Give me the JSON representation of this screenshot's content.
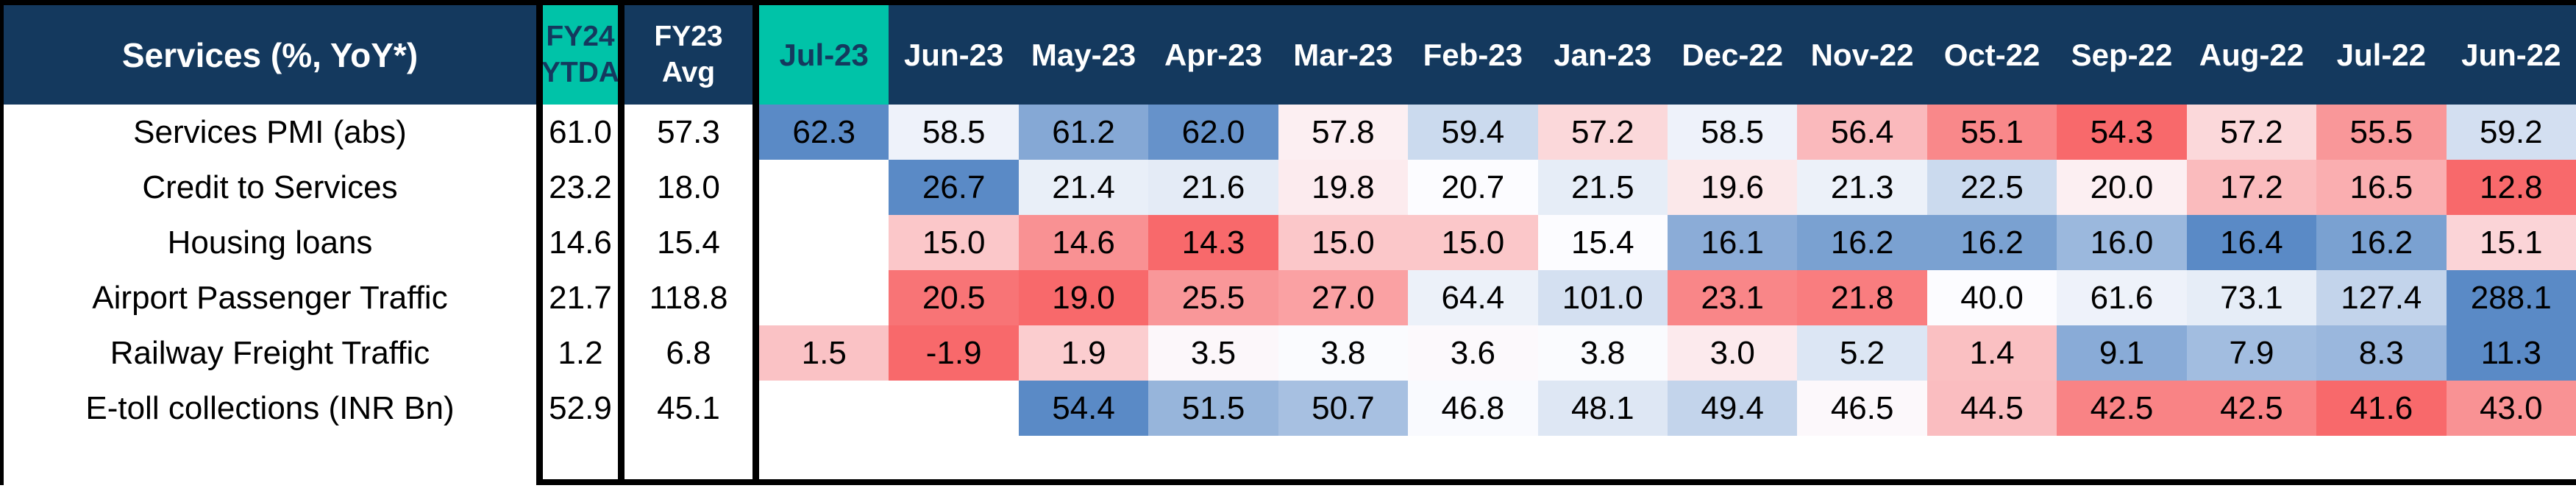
{
  "colors": {
    "header_bg": "#14395E",
    "header_text": "#FFFFFF",
    "highlight_bg": "#00C3A8",
    "highlight_text": "#14395E",
    "cell_text": "#000000",
    "table_border": "#000000",
    "row_bg": "#FFFFFF"
  },
  "chart_data": {
    "type": "heatmap",
    "title": "Services (%, YoY*)",
    "summary_columns": [
      {
        "id": "fy24-ytda",
        "lines": [
          "FY24",
          "YTDA"
        ],
        "highlighted": true
      },
      {
        "id": "fy23-avg",
        "lines": [
          "FY23",
          "Avg"
        ],
        "highlighted": false
      }
    ],
    "columns": [
      "Jul-23",
      "Jun-23",
      "May-23",
      "Apr-23",
      "Mar-23",
      "Feb-23",
      "Jan-23",
      "Dec-22",
      "Nov-22",
      "Oct-22",
      "Sep-22",
      "Aug-22",
      "Jul-22",
      "Jun-22"
    ],
    "highlighted_column": "Jul-23",
    "rows": [
      {
        "label": "Services PMI (abs)",
        "fy24_ytda": 61.0,
        "fy23_avg": 57.3,
        "monthly": [
          62.3,
          58.5,
          61.2,
          62.0,
          57.8,
          59.4,
          57.2,
          58.5,
          56.4,
          55.1,
          54.3,
          57.2,
          55.5,
          59.2
        ]
      },
      {
        "label": "Credit to Services",
        "fy24_ytda": 23.2,
        "fy23_avg": 18.0,
        "monthly": [
          null,
          26.7,
          21.4,
          21.6,
          19.8,
          20.7,
          21.5,
          19.6,
          21.3,
          22.5,
          20.0,
          17.2,
          16.5,
          12.8
        ]
      },
      {
        "label": "Housing loans",
        "fy24_ytda": 14.6,
        "fy23_avg": 15.4,
        "monthly": [
          null,
          15.0,
          14.6,
          14.3,
          15.0,
          15.0,
          15.4,
          16.1,
          16.2,
          16.2,
          16.0,
          16.4,
          16.2,
          15.1
        ]
      },
      {
        "label": "Airport Passenger Traffic",
        "fy24_ytda": 21.7,
        "fy23_avg": 118.8,
        "monthly": [
          null,
          20.5,
          19.0,
          25.5,
          27.0,
          64.4,
          101.0,
          23.1,
          21.8,
          40.0,
          61.6,
          73.1,
          127.4,
          288.1
        ]
      },
      {
        "label": "Railway Freight Traffic",
        "fy24_ytda": 1.2,
        "fy23_avg": 6.8,
        "monthly": [
          1.5,
          -1.9,
          1.9,
          3.5,
          3.8,
          3.6,
          3.8,
          3.0,
          5.2,
          1.4,
          9.1,
          7.9,
          8.3,
          11.3
        ]
      },
      {
        "label": "E-toll collections (INR Bn)",
        "fy24_ytda": 52.9,
        "fy23_avg": 45.1,
        "monthly": [
          null,
          null,
          54.4,
          51.5,
          50.7,
          46.8,
          48.1,
          49.4,
          46.5,
          44.5,
          42.5,
          42.5,
          41.6,
          43.0
        ]
      }
    ],
    "color_scale": {
      "min_color": "#F8696B",
      "mid_color": "#FCFCFF",
      "max_color": "#5A8AC6",
      "midpoint": "median",
      "scope": "per-row-including-summary-columns",
      "painted_columns": "monthly-only"
    },
    "layout": {
      "legend": false,
      "gridlines": false,
      "value_format": "0.0"
    }
  }
}
